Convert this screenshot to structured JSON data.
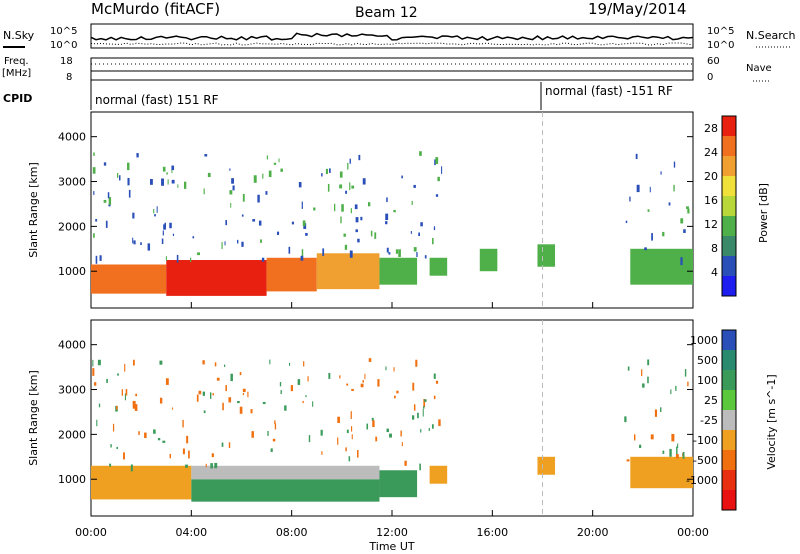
{
  "header": {
    "title": "McMurdo (fitACF)",
    "beam": "Beam 12",
    "date": "19/May/2014"
  },
  "summary": {
    "nsky_label": "N.Sky",
    "nsearch_label": "N.Search",
    "freq_label": "Freq.",
    "freq_unit": "[MHz]",
    "nave_label": "Nave",
    "cpid_label": "CPID",
    "nsky_ticks": [
      "10^5",
      "10^0"
    ],
    "nsearch_ticks": [
      "10^5",
      "10^0"
    ],
    "freq_ticks": [
      "18",
      "8"
    ],
    "nave_ticks": [
      "60",
      "0"
    ],
    "cpid_segments": [
      "normal (fast) 151 RF",
      "normal (fast) -151 RF"
    ]
  },
  "chart_data": [
    {
      "type": "heatmap",
      "name": "power",
      "xlabel": "",
      "ylabel": "Slant Range [km]",
      "xlim": [
        0,
        24
      ],
      "ylim": [
        180,
        4550
      ],
      "x_ticks": [
        "00:00",
        "04:00",
        "08:00",
        "12:00",
        "16:00",
        "20:00",
        "00:00"
      ],
      "y_ticks": [
        1000,
        2000,
        3000,
        4000
      ],
      "colorbar": {
        "label": "Power [dB]",
        "ticks": [
          4,
          8,
          12,
          16,
          20,
          24,
          28
        ],
        "range": [
          0,
          30
        ],
        "colors": [
          "#1e1ef0",
          "#2a4fb8",
          "#3a8a6a",
          "#4fb04a",
          "#b8d83a",
          "#f0e03a",
          "#f0a030",
          "#f07020",
          "#e82010"
        ]
      },
      "bands": [
        {
          "t0": 0.0,
          "t1": 3.0,
          "r0": 500,
          "r1": 1150,
          "level": 26
        },
        {
          "t0": 3.0,
          "t1": 7.0,
          "r0": 450,
          "r1": 1250,
          "level": 28
        },
        {
          "t0": 7.0,
          "t1": 9.0,
          "r0": 550,
          "r1": 1300,
          "level": 25
        },
        {
          "t0": 9.0,
          "t1": 11.5,
          "r0": 600,
          "r1": 1400,
          "level": 20
        },
        {
          "t0": 11.5,
          "t1": 13.0,
          "r0": 700,
          "r1": 1300,
          "level": 12
        },
        {
          "t0": 13.5,
          "t1": 14.2,
          "r0": 900,
          "r1": 1300,
          "level": 12
        },
        {
          "t0": 15.5,
          "t1": 16.2,
          "r0": 1000,
          "r1": 1500,
          "level": 12
        },
        {
          "t0": 17.8,
          "t1": 18.5,
          "r0": 1100,
          "r1": 1600,
          "level": 12
        },
        {
          "t0": 21.5,
          "t1": 24.0,
          "r0": 700,
          "r1": 1500,
          "level": 12
        }
      ]
    },
    {
      "type": "heatmap",
      "name": "velocity",
      "xlabel": "Time UT",
      "ylabel": "Slant Range [km]",
      "xlim": [
        0,
        24
      ],
      "ylim": [
        180,
        4550
      ],
      "x_ticks": [
        "00:00",
        "04:00",
        "08:00",
        "12:00",
        "16:00",
        "20:00",
        "00:00"
      ],
      "y_ticks": [
        1000,
        2000,
        3000,
        4000
      ],
      "colorbar": {
        "label": "Velocity [m s^-1]",
        "tick_labels": [
          "1000",
          "500",
          "100",
          "25",
          "-25",
          "-100",
          "-500",
          "-1000"
        ],
        "colors": [
          "#2a4fb8",
          "#2a8a70",
          "#3a9a5a",
          "#5ac83a",
          "#bcbcbc",
          "#f0a020",
          "#f07010",
          "#e83010",
          "#e81010"
        ]
      },
      "bands": [
        {
          "t0": 0.0,
          "t1": 4.0,
          "r0": 550,
          "r1": 1300,
          "level": -100
        },
        {
          "t0": 4.0,
          "t1": 11.5,
          "r0": 500,
          "r1": 1000,
          "level": 100
        },
        {
          "t0": 4.0,
          "t1": 11.5,
          "r0": 1000,
          "r1": 1300,
          "level": -25
        },
        {
          "t0": 11.5,
          "t1": 13.0,
          "r0": 600,
          "r1": 1200,
          "level": 100
        },
        {
          "t0": 13.5,
          "t1": 14.2,
          "r0": 900,
          "r1": 1300,
          "level": -100
        },
        {
          "t0": 17.8,
          "t1": 18.5,
          "r0": 1100,
          "r1": 1500,
          "level": -100
        },
        {
          "t0": 21.5,
          "t1": 24.0,
          "r0": 800,
          "r1": 1500,
          "level": -100
        }
      ]
    }
  ]
}
